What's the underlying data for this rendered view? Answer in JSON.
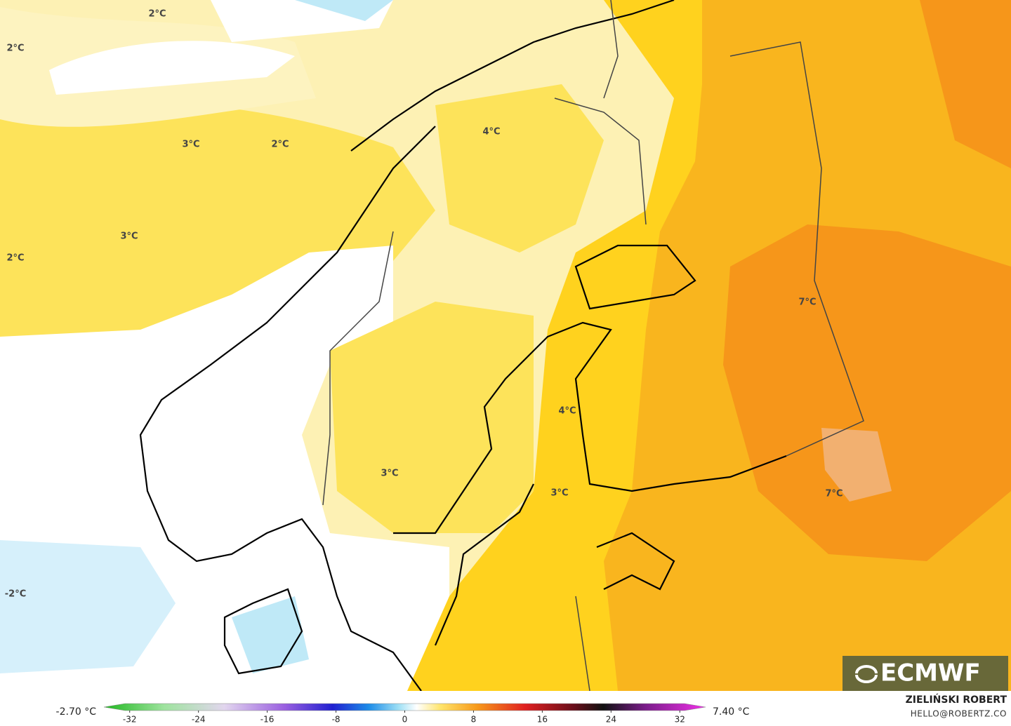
{
  "map": {
    "contour_labels": [
      "2°C",
      "2°C",
      "3°C",
      "2°C",
      "4°C",
      "3°C",
      "2°C",
      "7°C",
      "4°C",
      "3°C",
      "3°C",
      "7°C",
      "-2°C"
    ]
  },
  "colorbar": {
    "min_label": "-2.70 °C",
    "max_label": "7.40 °C",
    "range": [
      -35,
      35
    ],
    "ticks": [
      -32,
      -24,
      -16,
      -8,
      0,
      8,
      16,
      24,
      32
    ]
  },
  "credits": {
    "author": "ZIELIŃSKI ROBERT",
    "contact": "HELLO@ROBERTZ.CO"
  },
  "logo": "ECMWF"
}
